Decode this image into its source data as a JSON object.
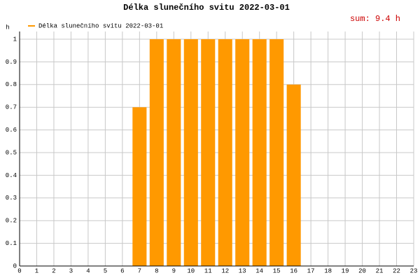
{
  "chart_data": {
    "type": "bar",
    "title": "Délka slunečního svitu 2022-03-01",
    "y_label": "h",
    "annotation": "sum: 9.4 h",
    "legend": "Délka slunečního svitu 2022-03-01",
    "legend_position": "top-left",
    "color": "#ff9900",
    "x": [
      7,
      8,
      9,
      10,
      11,
      12,
      13,
      14,
      15,
      16
    ],
    "values": [
      0.7,
      1,
      1,
      1,
      1,
      1,
      1,
      1,
      1,
      0.8
    ],
    "xlim": [
      0,
      23
    ],
    "xticks": [
      0,
      1,
      2,
      3,
      4,
      5,
      6,
      7,
      8,
      9,
      10,
      11,
      12,
      13,
      14,
      15,
      16,
      17,
      18,
      19,
      20,
      21,
      22,
      23
    ],
    "ylim": [
      0,
      1
    ],
    "yticks": [
      0,
      0.1,
      0.2,
      0.3,
      0.4,
      0.5,
      0.6,
      0.7,
      0.8,
      0.9,
      1
    ],
    "grid": true
  }
}
